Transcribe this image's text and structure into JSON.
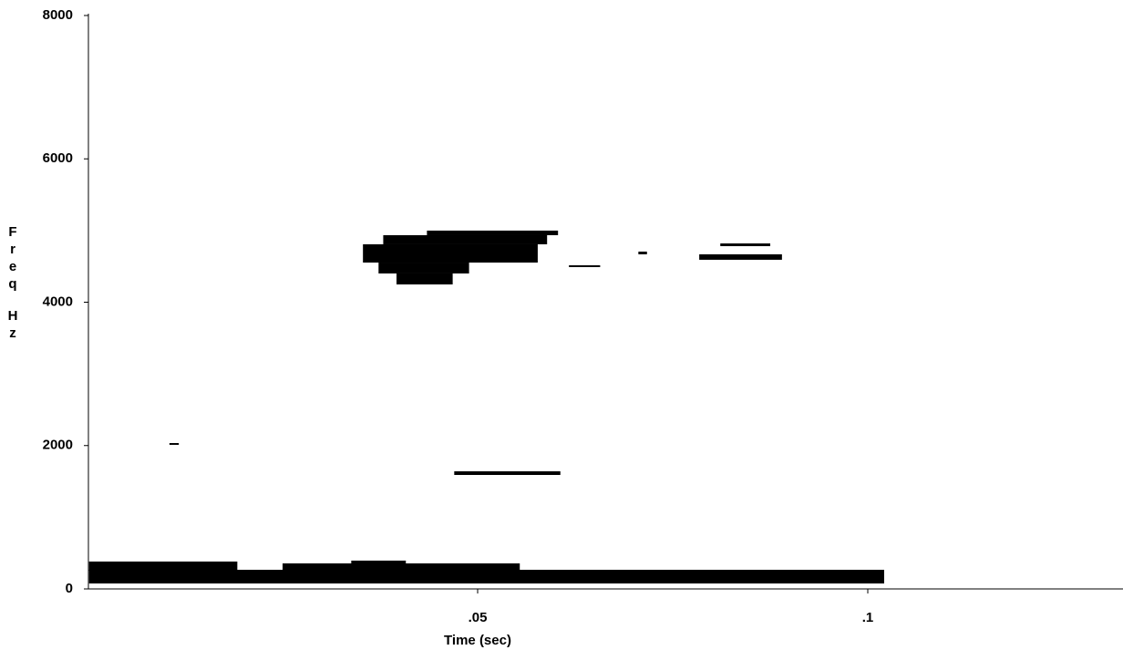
{
  "chart_data": {
    "type": "spectrogram",
    "xlabel": "Time (sec)",
    "ylabel": "Freq Hz",
    "xlim": [
      0,
      0.133
    ],
    "ylim": [
      0,
      8000
    ],
    "xticks": [
      {
        "value": 0.05,
        "label": ".05"
      },
      {
        "value": 0.1,
        "label": ".1"
      }
    ],
    "yticks": [
      0,
      2000,
      4000,
      6000,
      8000
    ],
    "color": "#000000",
    "segments": [
      [
        0.0002,
        0.1021,
        76,
        267
      ],
      [
        0.0002,
        0.0192,
        254,
        382
      ],
      [
        0.025,
        0.0554,
        254,
        356
      ],
      [
        0.0338,
        0.0408,
        331,
        395
      ],
      [
        0.0435,
        0.0603,
        4935,
        4999
      ],
      [
        0.0379,
        0.0589,
        4808,
        4935
      ],
      [
        0.0353,
        0.0577,
        4553,
        4808
      ],
      [
        0.0373,
        0.0489,
        4401,
        4553
      ],
      [
        0.0396,
        0.0468,
        4248,
        4401
      ],
      [
        0.0617,
        0.0657,
        4490,
        4515
      ],
      [
        0.0706,
        0.0717,
        4668,
        4706
      ],
      [
        0.0811,
        0.0875,
        4782,
        4820
      ],
      [
        0.0784,
        0.089,
        4592,
        4668
      ],
      [
        0.047,
        0.0606,
        1590,
        1641
      ],
      [
        0.0105,
        0.0117,
        2010,
        2035
      ]
    ]
  }
}
